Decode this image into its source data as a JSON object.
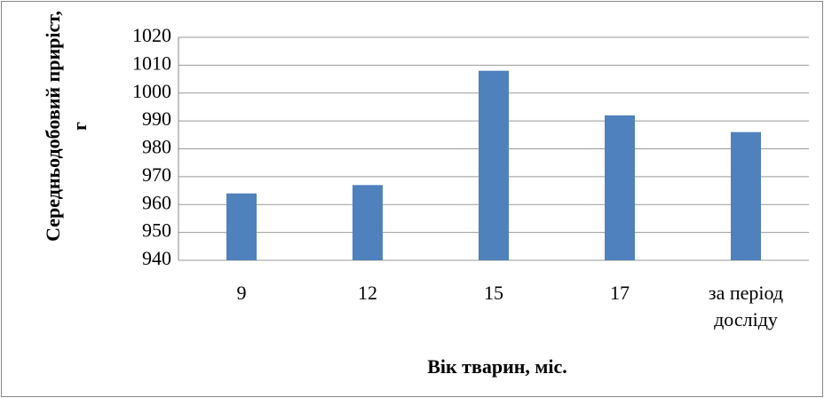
{
  "chart_data": {
    "type": "bar",
    "y_label": "Середньодобовий приріст, г",
    "x_label": "Вік тварин, міс.",
    "categories": [
      "9",
      "12",
      "15",
      "17",
      "за період досліду"
    ],
    "values": [
      964,
      967,
      1008,
      992,
      986
    ],
    "color": "#4f81bd",
    "ylim": [
      940,
      1020
    ],
    "yticks": [
      940,
      950,
      960,
      970,
      980,
      990,
      1000,
      1010,
      1020
    ],
    "grid": true
  }
}
